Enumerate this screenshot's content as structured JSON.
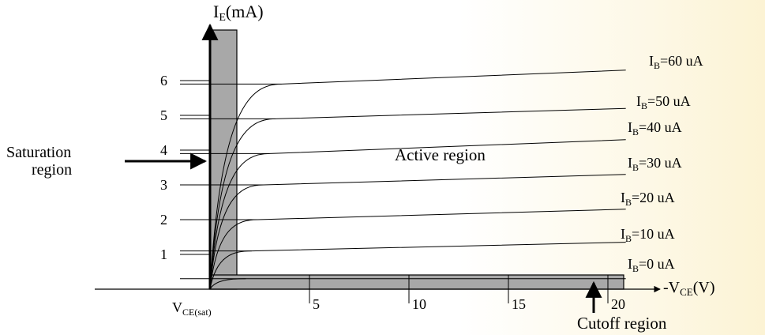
{
  "chart_data": {
    "type": "line",
    "y_axis_label": {
      "main": "I",
      "sub": "E",
      "rest": "(mA)"
    },
    "x_axis_label": {
      "main": "-V",
      "sub": "CE",
      "rest": "(V)"
    },
    "vce_sat_label": {
      "main": "V",
      "sub": "CE(sat)"
    },
    "y_ticks": [
      "1",
      "2",
      "3",
      "4",
      "5",
      "6"
    ],
    "x_ticks": [
      "5",
      "10",
      "15",
      "20"
    ],
    "xlim": [
      0,
      20
    ],
    "ylim": [
      0,
      6.8
    ],
    "series": [
      {
        "name": {
          "main": "I",
          "sub": "B",
          "rest": "=0 uA"
        },
        "sat": 0.3,
        "end": 0.3,
        "knee": 1.8
      },
      {
        "name": {
          "main": "I",
          "sub": "B",
          "rest": "=10 uA"
        },
        "sat": 1.1,
        "end": 1.35,
        "knee": 2.1
      },
      {
        "name": {
          "main": "I",
          "sub": "B",
          "rest": "=20 uA"
        },
        "sat": 2.0,
        "end": 2.3,
        "knee": 2.4
      },
      {
        "name": {
          "main": "I",
          "sub": "B",
          "rest": "=30 uA"
        },
        "sat": 3.0,
        "end": 3.3,
        "knee": 2.7
      },
      {
        "name": {
          "main": "I",
          "sub": "B",
          "rest": "=40 uA"
        },
        "sat": 3.9,
        "end": 4.3,
        "knee": 3.0
      },
      {
        "name": {
          "main": "I",
          "sub": "B",
          "rest": "=50 uA"
        },
        "sat": 4.9,
        "end": 5.2,
        "knee": 3.3
      },
      {
        "name": {
          "main": "I",
          "sub": "B",
          "rest": "=60 uA"
        },
        "sat": 5.9,
        "end": 6.3,
        "knee": 3.6
      }
    ],
    "annotations": {
      "saturation": [
        "Saturation",
        "region"
      ],
      "active": "Active region",
      "cutoff": "Cutoff region"
    }
  }
}
